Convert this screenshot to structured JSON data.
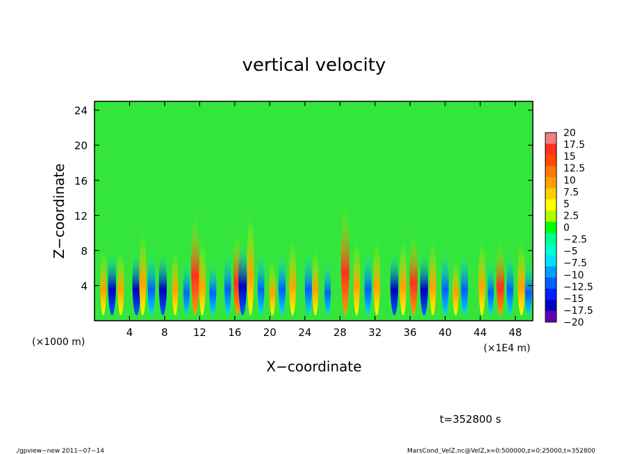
{
  "chart_data": {
    "type": "heatmap",
    "title": "vertical velocity",
    "xlabel": "X−coordinate",
    "ylabel": "Z−coordinate",
    "x_unit_left": "(×1000 m)",
    "x_unit_right": "(×1E4 m)",
    "x_ticks": [
      "4",
      "8",
      "12",
      "16",
      "20",
      "24",
      "28",
      "32",
      "36",
      "40",
      "44",
      "48"
    ],
    "x_tick_values": [
      4,
      8,
      12,
      16,
      20,
      24,
      28,
      32,
      36,
      40,
      44,
      48
    ],
    "xlim": [
      0,
      50
    ],
    "y_ticks": [
      "4",
      "8",
      "12",
      "16",
      "20",
      "24"
    ],
    "y_tick_values": [
      4,
      8,
      12,
      16,
      20,
      24
    ],
    "ylim": [
      0,
      25
    ],
    "colorbar_labels": [
      "20",
      "17.5",
      "15",
      "12.5",
      "10",
      "7.5",
      "5",
      "2.5",
      "0",
      "−2.5",
      "−5",
      "−7.5",
      "−10",
      "−12.5",
      "−15",
      "−17.5",
      "−20"
    ],
    "colorbar_colors": [
      "#f08080",
      "#ff3020",
      "#ff4b00",
      "#ff7800",
      "#ffa000",
      "#ffd000",
      "#ffff00",
      "#b0ff00",
      "#00ff00",
      "#00ff90",
      "#00ffd0",
      "#00e0ff",
      "#00a0ff",
      "#0060ff",
      "#0020ff",
      "#0000c0",
      "#6000b0"
    ],
    "time_label": "t=352800 s",
    "x_extent": "x=0:500000",
    "z_extent": "z=0:25000",
    "plumes": [
      {
        "x": 1.0,
        "a": 0.5,
        "h": 8
      },
      {
        "x": 2.0,
        "a": -0.9,
        "h": 8
      },
      {
        "x": 3.0,
        "a": 0.6,
        "h": 8
      },
      {
        "x": 4.8,
        "a": -1.0,
        "h": 8
      },
      {
        "x": 5.5,
        "a": 0.7,
        "h": 10
      },
      {
        "x": 6.5,
        "a": -0.8,
        "h": 8
      },
      {
        "x": 7.8,
        "a": -0.9,
        "h": 8
      },
      {
        "x": 9.2,
        "a": 0.5,
        "h": 8
      },
      {
        "x": 10.5,
        "a": -0.5,
        "h": 7
      },
      {
        "x": 11.5,
        "a": 1.0,
        "h": 12
      },
      {
        "x": 12.3,
        "a": 0.6,
        "h": 9
      },
      {
        "x": 13.5,
        "a": -0.7,
        "h": 7
      },
      {
        "x": 15.2,
        "a": -0.6,
        "h": 8
      },
      {
        "x": 16.3,
        "a": 0.9,
        "h": 10
      },
      {
        "x": 16.9,
        "a": -1.0,
        "h": 9
      },
      {
        "x": 17.8,
        "a": 0.7,
        "h": 12
      },
      {
        "x": 19.0,
        "a": -0.6,
        "h": 8
      },
      {
        "x": 20.3,
        "a": 0.5,
        "h": 7
      },
      {
        "x": 21.4,
        "a": -0.7,
        "h": 8
      },
      {
        "x": 22.6,
        "a": 0.7,
        "h": 9
      },
      {
        "x": 24.4,
        "a": -0.7,
        "h": 8
      },
      {
        "x": 25.2,
        "a": 0.5,
        "h": 8
      },
      {
        "x": 26.6,
        "a": -0.5,
        "h": 7
      },
      {
        "x": 28.6,
        "a": 1.0,
        "h": 13
      },
      {
        "x": 29.9,
        "a": 0.6,
        "h": 9
      },
      {
        "x": 31.2,
        "a": -0.7,
        "h": 8
      },
      {
        "x": 32.2,
        "a": 0.6,
        "h": 9
      },
      {
        "x": 34.2,
        "a": -0.9,
        "h": 8
      },
      {
        "x": 35.2,
        "a": 0.7,
        "h": 9
      },
      {
        "x": 36.4,
        "a": 0.9,
        "h": 10
      },
      {
        "x": 37.6,
        "a": -0.9,
        "h": 8
      },
      {
        "x": 38.6,
        "a": 0.6,
        "h": 9
      },
      {
        "x": 40.0,
        "a": -0.7,
        "h": 8
      },
      {
        "x": 41.2,
        "a": 0.5,
        "h": 7
      },
      {
        "x": 42.2,
        "a": -0.7,
        "h": 8
      },
      {
        "x": 44.2,
        "a": 0.6,
        "h": 9
      },
      {
        "x": 45.2,
        "a": -0.5,
        "h": 7
      },
      {
        "x": 46.3,
        "a": 0.9,
        "h": 9
      },
      {
        "x": 47.4,
        "a": -0.6,
        "h": 8
      },
      {
        "x": 48.7,
        "a": 0.8,
        "h": 9
      },
      {
        "x": 49.5,
        "a": -0.7,
        "h": 7
      }
    ]
  },
  "footer": {
    "left": "./gpview−new   2011−07−14",
    "right": "MarsCond_VelZ.nc@VelZ,x=0:500000,z=0:25000,t=352800"
  }
}
